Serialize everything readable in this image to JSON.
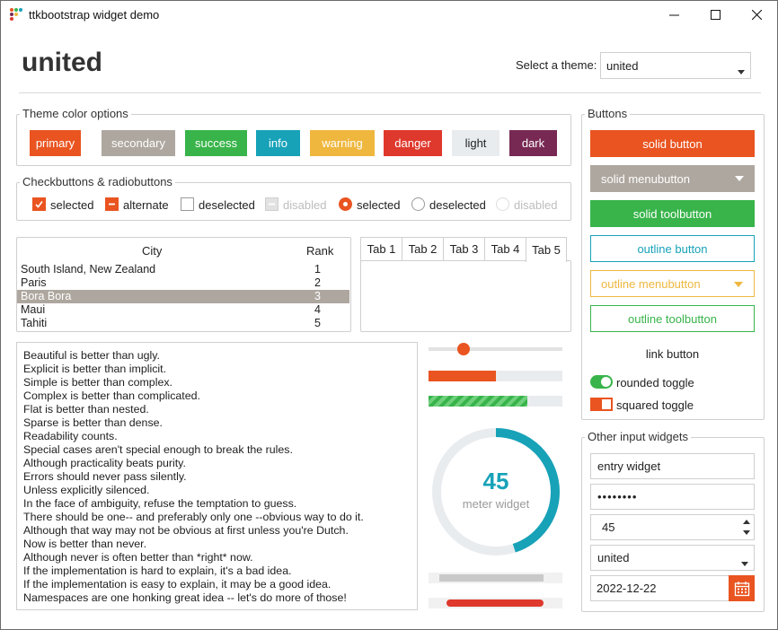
{
  "window": {
    "title": "ttkbootstrap widget demo",
    "minimize": "—",
    "maximize": "☐",
    "close": "✕"
  },
  "header": {
    "theme_name": "united",
    "select_label": "Select a theme:",
    "theme_combo_value": "united"
  },
  "colors": {
    "primary": "#e95420",
    "secondary": "#aea79f",
    "success": "#38b44a",
    "info": "#17a2b8",
    "warning": "#efb73e",
    "danger": "#df382c",
    "light": "#e9ecef",
    "dark": "#772953"
  },
  "theme_colors": {
    "title": "Theme color options",
    "buttons": [
      "primary",
      "secondary",
      "success",
      "info",
      "warning",
      "danger",
      "light",
      "dark"
    ]
  },
  "checks": {
    "title": "Checkbuttons & radiobuttons",
    "items": [
      "selected",
      "alternate",
      "deselected",
      "disabled",
      "selected",
      "deselected",
      "disabled"
    ]
  },
  "table": {
    "headers": [
      "City",
      "Rank"
    ],
    "rows": [
      [
        "South Island, New Zealand",
        "1"
      ],
      [
        "Paris",
        "2"
      ],
      [
        "Bora Bora",
        "3"
      ],
      [
        "Maui",
        "4"
      ],
      [
        "Tahiti",
        "5"
      ]
    ],
    "selected_row": 2
  },
  "tabs": [
    "Tab 1",
    "Tab 2",
    "Tab 3",
    "Tab 4",
    "Tab 5"
  ],
  "zen": [
    "Beautiful is better than ugly.",
    "Explicit is better than implicit.",
    "Simple is better than complex.",
    "Complex is better than complicated.",
    "Flat is better than nested.",
    "Sparse is better than dense.",
    "Readability counts.",
    "Special cases aren't special enough to break the rules.",
    "Although practicality beats purity.",
    "Errors should never pass silently.",
    "Unless explicitly silenced.",
    "In the face of ambiguity, refuse the temptation to guess.",
    "There should be one-- and preferably only one --obvious way to do it.",
    "Although that way may not be obvious at first unless you're Dutch.",
    "Now is better than never.",
    "Although never is often better than *right* now.",
    "If the implementation is hard to explain, it's a bad idea.",
    "If the implementation is easy to explain, it may be a good idea.",
    "Namespaces are one honking great idea -- let's do more of those!"
  ],
  "progress": {
    "scale_fraction": 0.26,
    "progress_fraction": 0.5,
    "striped_fraction": 0.74
  },
  "meter": {
    "value": "45",
    "label": "meter widget",
    "fraction": 0.45
  },
  "buttons_panel": {
    "title": "Buttons",
    "solid_button": "solid button",
    "solid_menubutton": "solid menubutton",
    "solid_toolbutton": "solid toolbutton",
    "outline_button": "outline button",
    "outline_menubutton": "outline menubutton",
    "outline_toolbutton": "outline toolbutton",
    "link_button": "link button",
    "rounded_toggle": "rounded toggle",
    "squared_toggle": "squared toggle"
  },
  "inputs": {
    "title": "Other input widgets",
    "entry": "entry widget",
    "password": "••••••••",
    "spinbox": "45",
    "combobox": "united",
    "date": "2022-12-22"
  }
}
